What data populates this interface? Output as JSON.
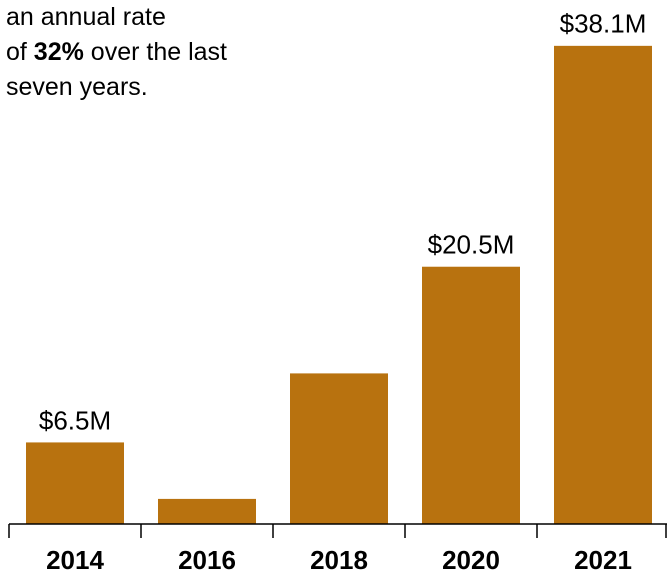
{
  "chart_data": {
    "type": "bar",
    "annotation": {
      "lines": [
        [
          "an annual rate"
        ],
        [
          "of ",
          "32%",
          " over the last"
        ],
        [
          "seven years."
        ]
      ],
      "bold": [
        [
          1,
          1
        ]
      ]
    },
    "categories": [
      "2014",
      "2016",
      "2018",
      "2020",
      "2021"
    ],
    "values": [
      6.5,
      2,
      12,
      20.5,
      38.1
    ],
    "value_labels": [
      "$6.5M",
      null,
      null,
      "$20.5M",
      "$38.1M"
    ],
    "color": "#b8720f",
    "ylim": [
      0,
      40
    ]
  }
}
